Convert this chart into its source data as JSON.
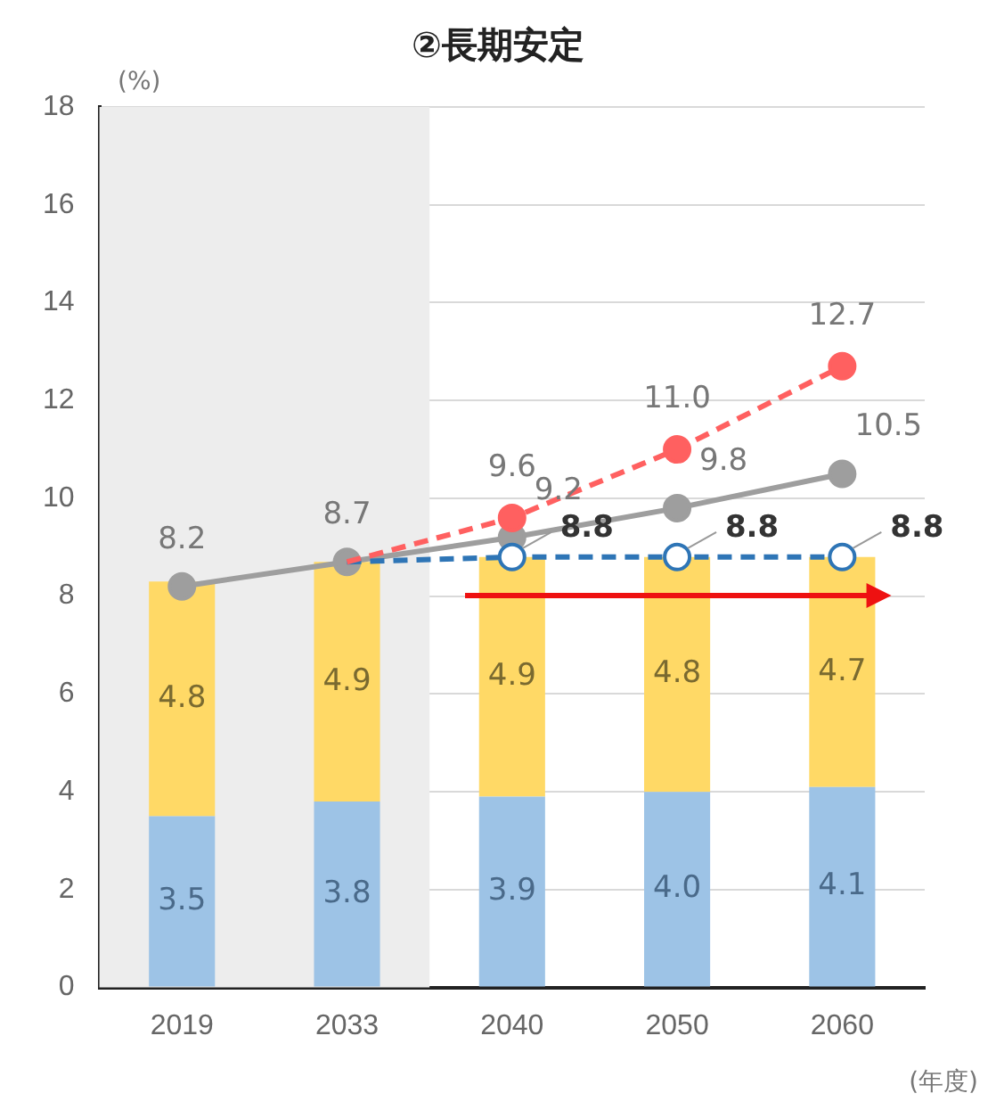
{
  "chart_data": {
    "type": "bar",
    "title": "②長期安定",
    "ylabel": "(%)",
    "xlabel": "(年度)",
    "stacked": true,
    "grid": "y",
    "legend": false,
    "categories": [
      "2019",
      "2033",
      "2040",
      "2050",
      "2060"
    ],
    "ylim": [
      0,
      18
    ],
    "yticks": [
      0,
      2,
      4,
      6,
      8,
      10,
      12,
      14,
      16,
      18
    ],
    "bands": [
      {
        "axis": "x",
        "from": "2019",
        "to": "2033",
        "color": "#ededed"
      }
    ],
    "series": [
      {
        "color": "#9dc3e6",
        "values": [
          3.5,
          3.8,
          3.9,
          4.0,
          4.1
        ],
        "value_labels": [
          "3.5",
          "3.8",
          "3.9",
          "4.0",
          "4.1"
        ]
      },
      {
        "color": "#ffd966",
        "values": [
          4.8,
          4.9,
          4.9,
          4.8,
          4.7
        ],
        "value_labels": [
          "4.8",
          "4.9",
          "4.9",
          "4.8",
          "4.7"
        ]
      },
      {
        "type": "line",
        "color": "#ff6060",
        "line_style": "dashed",
        "marker": "circle",
        "values": [
          null,
          8.7,
          9.6,
          11.0,
          12.7
        ],
        "value_labels": [
          null,
          null,
          "9.6",
          "11.0",
          "12.7"
        ]
      },
      {
        "type": "line",
        "color": "#2e75b6",
        "line_style": "dashed",
        "marker": "circle",
        "values": [
          null,
          8.7,
          8.8,
          8.8,
          8.8
        ],
        "value_labels": [
          null,
          null,
          "8.8",
          "8.8",
          "8.8"
        ]
      },
      {
        "type": "line",
        "color": "#9e9e9e",
        "line_style": "solid",
        "marker": "circle",
        "values": [
          8.2,
          8.7,
          9.2,
          9.8,
          10.5
        ],
        "value_labels": [
          "8.2",
          "8.7",
          "9.2",
          "9.8",
          "10.5"
        ]
      }
    ]
  }
}
